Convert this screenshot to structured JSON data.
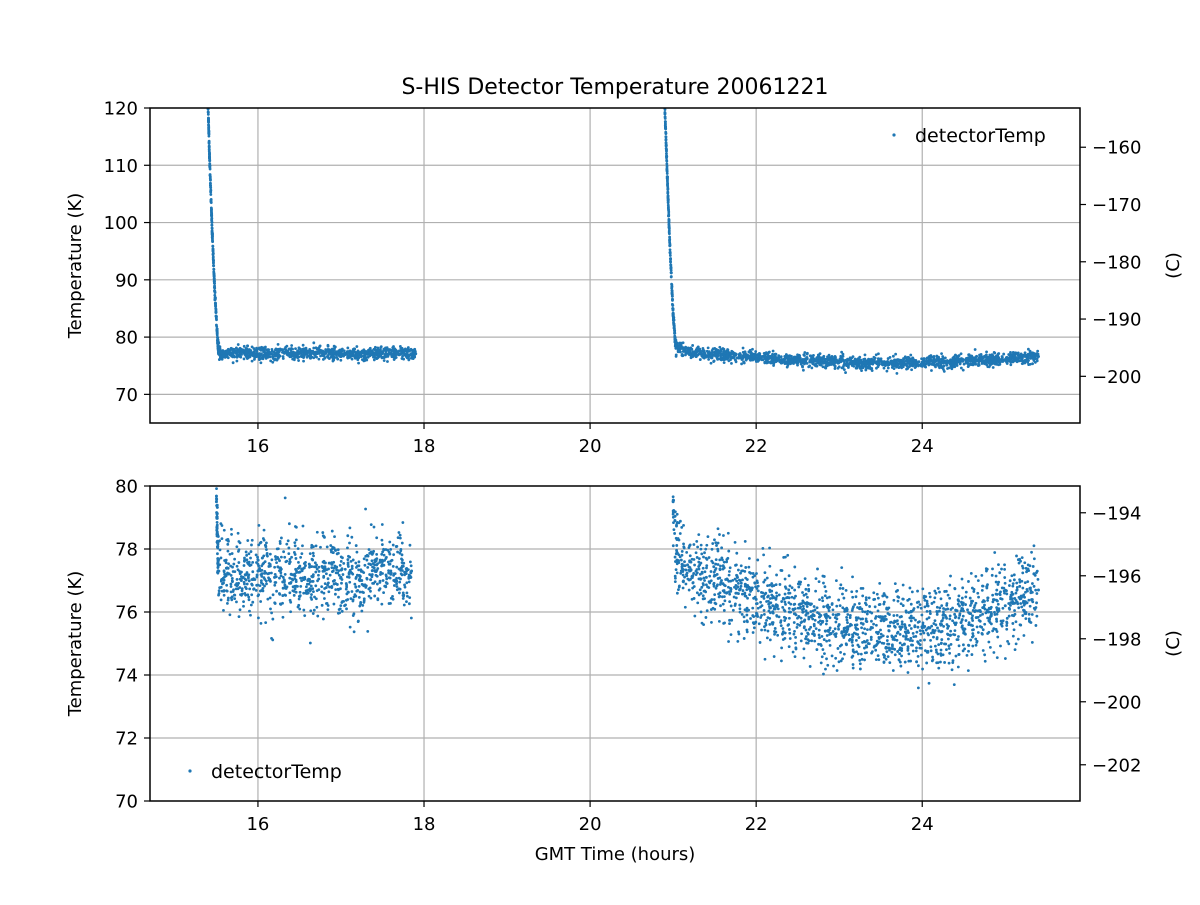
{
  "chart_data": [
    {
      "type": "scatter",
      "title": "S-HIS Detector Temperature 20061221",
      "xlabel": "",
      "ylabel": "Temperature (K)",
      "ylabel_right": "(C)",
      "xlim": [
        14.7,
        25.9
      ],
      "ylim": [
        65,
        120
      ],
      "ylim_right_celsius": [
        -208.15,
        -153.15
      ],
      "xticks": [
        "16",
        "18",
        "20",
        "22",
        "24"
      ],
      "yticks": [
        "70",
        "80",
        "90",
        "100",
        "110",
        "120"
      ],
      "yticks_right": [
        "−160",
        "−170",
        "−180",
        "−190",
        "−200"
      ],
      "grid": true,
      "legend": {
        "entries": [
          "detectorTemp"
        ],
        "placement": "top-right"
      },
      "series": [
        {
          "name": "detectorTemp",
          "color": "#1f77b4",
          "points": [
            [
              15.4,
              120.0
            ],
            [
              15.42,
              110.0
            ],
            [
              15.45,
              98.0
            ],
            [
              15.48,
              88.0
            ],
            [
              15.52,
              78.0
            ],
            [
              15.55,
              77.0
            ],
            [
              15.8,
              77.2
            ],
            [
              16.2,
              77.0
            ],
            [
              16.6,
              77.3
            ],
            [
              17.0,
              77.1
            ],
            [
              17.3,
              77.0
            ],
            [
              17.6,
              77.2
            ],
            [
              17.9,
              77.1
            ],
            [
              20.9,
              120.0
            ],
            [
              20.93,
              108.0
            ],
            [
              20.96,
              96.0
            ],
            [
              21.0,
              84.0
            ],
            [
              21.03,
              78.5
            ],
            [
              21.2,
              77.3
            ],
            [
              21.6,
              76.9
            ],
            [
              22.0,
              76.4
            ],
            [
              22.4,
              76.0
            ],
            [
              22.8,
              75.7
            ],
            [
              23.2,
              75.6
            ],
            [
              23.6,
              75.5
            ],
            [
              24.0,
              75.6
            ],
            [
              24.4,
              75.7
            ],
            [
              24.8,
              76.0
            ],
            [
              25.1,
              76.4
            ],
            [
              25.4,
              76.6
            ]
          ]
        }
      ]
    },
    {
      "type": "scatter",
      "title": "",
      "xlabel": "GMT Time (hours)",
      "ylabel": "Temperature (K)",
      "ylabel_right": "(C)",
      "xlim": [
        14.7,
        25.9
      ],
      "ylim": [
        70,
        80
      ],
      "ylim_right_celsius": [
        -203.15,
        -193.15
      ],
      "xticks": [
        "16",
        "18",
        "20",
        "22",
        "24"
      ],
      "yticks": [
        "70",
        "72",
        "74",
        "76",
        "78",
        "80"
      ],
      "yticks_right": [
        "−194",
        "−196",
        "−198",
        "−200",
        "−202"
      ],
      "grid": true,
      "legend": {
        "entries": [
          "detectorTemp"
        ],
        "placement": "bottom-left"
      },
      "series": [
        {
          "name": "detectorTemp",
          "color": "#1f77b4",
          "points": [
            [
              15.5,
              79.5
            ],
            [
              15.52,
              77.5
            ],
            [
              15.6,
              77.2
            ],
            [
              15.8,
              77.0
            ],
            [
              16.0,
              77.3
            ],
            [
              16.2,
              77.1
            ],
            [
              16.4,
              77.2
            ],
            [
              16.6,
              77.0
            ],
            [
              16.8,
              77.3
            ],
            [
              17.0,
              77.1
            ],
            [
              17.25,
              77.0
            ],
            [
              17.4,
              77.4
            ],
            [
              17.6,
              77.2
            ],
            [
              17.85,
              77.3
            ],
            [
              21.0,
              79.5
            ],
            [
              21.05,
              77.6
            ],
            [
              21.2,
              77.3
            ],
            [
              21.4,
              77.1
            ],
            [
              21.6,
              76.9
            ],
            [
              21.8,
              76.7
            ],
            [
              22.0,
              76.4
            ],
            [
              22.2,
              76.2
            ],
            [
              22.4,
              76.0
            ],
            [
              22.6,
              75.9
            ],
            [
              22.8,
              75.7
            ],
            [
              23.0,
              75.6
            ],
            [
              23.2,
              75.5
            ],
            [
              23.4,
              75.5
            ],
            [
              23.6,
              75.4
            ],
            [
              23.8,
              75.5
            ],
            [
              24.0,
              75.5
            ],
            [
              24.2,
              75.4
            ],
            [
              24.4,
              75.6
            ],
            [
              24.6,
              75.8
            ],
            [
              24.8,
              76.0
            ],
            [
              25.0,
              76.2
            ],
            [
              25.2,
              76.5
            ],
            [
              25.4,
              76.7
            ]
          ]
        }
      ]
    }
  ]
}
